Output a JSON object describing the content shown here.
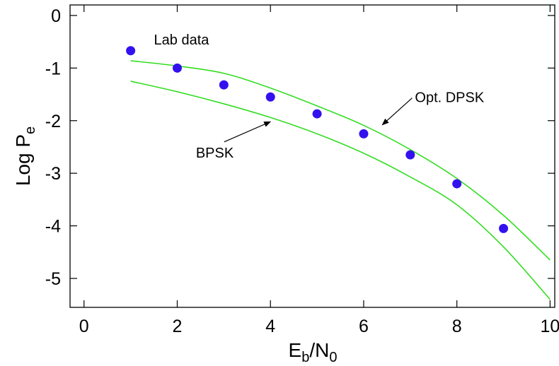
{
  "chart_data": {
    "type": "scatter",
    "xlabel": {
      "main": "E",
      "sub1": "b",
      "mid": "/N",
      "sub2": "0"
    },
    "ylabel": {
      "main": "Log P",
      "sub": "e"
    },
    "xlim": [
      -0.3,
      10.1
    ],
    "ylim": [
      -5.55,
      0.2
    ],
    "xticks": [
      "0",
      "2",
      "4",
      "6",
      "8",
      "10"
    ],
    "yticks": [
      "0",
      "-1",
      "-2",
      "-3",
      "-4",
      "-5"
    ],
    "grid": false,
    "series": [
      {
        "name": "Lab data",
        "kind": "points",
        "color": "#3311ee",
        "x": [
          1,
          2,
          3,
          4,
          5,
          6,
          7,
          8,
          9
        ],
        "y": [
          -0.67,
          -1.0,
          -1.32,
          -1.55,
          -1.87,
          -2.25,
          -2.65,
          -3.2,
          -4.05
        ]
      },
      {
        "name": "Opt. DPSK",
        "kind": "line",
        "color": "#33dd22",
        "x": [
          1,
          2,
          3,
          4,
          5,
          6,
          7,
          8,
          9,
          10
        ],
        "y": [
          -0.86,
          -0.96,
          -1.1,
          -1.38,
          -1.72,
          -2.09,
          -2.55,
          -3.1,
          -3.8,
          -4.65
        ]
      },
      {
        "name": "BPSK",
        "kind": "line",
        "color": "#33dd22",
        "x": [
          1,
          2,
          3,
          4,
          5,
          6,
          7,
          8,
          9,
          10
        ],
        "y": [
          -1.25,
          -1.45,
          -1.68,
          -1.94,
          -2.25,
          -2.62,
          -3.07,
          -3.6,
          -4.4,
          -5.4
        ]
      }
    ],
    "annotations": [
      {
        "text": "Lab data",
        "x": 1.5,
        "y": -0.55
      },
      {
        "text": "Opt. DPSK",
        "x": 7.1,
        "y": -1.65,
        "arrow_to": [
          6.4,
          -2.08
        ]
      },
      {
        "text": "BPSK",
        "x": 2.4,
        "y": -2.7,
        "arrow_to": [
          4.0,
          -2.02
        ]
      }
    ]
  }
}
